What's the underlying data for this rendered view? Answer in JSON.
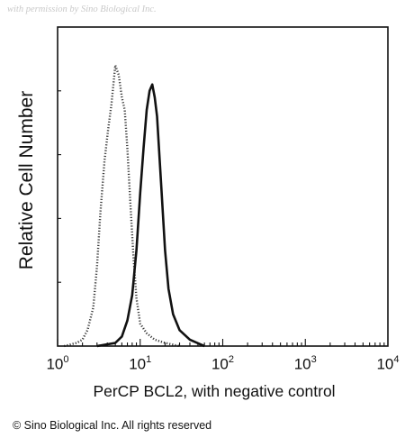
{
  "watermark": "with permission by Sino Biological Inc.",
  "footer": "© Sino Biological Inc. All rights reserved",
  "chart_data": {
    "type": "line",
    "xlabel": "PerCP BCL2, with negative control",
    "ylabel": "Relative Cell Number",
    "x_scale": "log",
    "xlim": [
      1,
      10000
    ],
    "x_ticks": [
      {
        "base": "10",
        "exp": "0"
      },
      {
        "base": "10",
        "exp": "1"
      },
      {
        "base": "10",
        "exp": "2"
      },
      {
        "base": "10",
        "exp": "3"
      },
      {
        "base": "10",
        "exp": "4"
      }
    ],
    "ylim": [
      0,
      100
    ],
    "series": [
      {
        "style": "dotted",
        "x": [
          1.2,
          1.7,
          2.0,
          2.3,
          2.7,
          3.0,
          3.3,
          3.7,
          4.1,
          4.5,
          5.0,
          5.5,
          6.0,
          6.5,
          7.0,
          7.6,
          8.3,
          9.0,
          10.0,
          12.0,
          15.0,
          20.0,
          30.0
        ],
        "y": [
          0,
          1,
          2,
          5,
          12,
          25,
          42,
          58,
          68,
          76,
          88,
          85,
          78,
          74,
          62,
          45,
          28,
          15,
          7,
          4,
          2,
          1,
          0
        ]
      },
      {
        "style": "solid",
        "x": [
          3.0,
          5.0,
          6.0,
          7.0,
          8.0,
          9.0,
          10.0,
          11.0,
          12.0,
          13.0,
          14.0,
          15.0,
          16.0,
          18.0,
          20.0,
          22.0,
          25.0,
          30.0,
          40.0,
          60.0
        ],
        "y": [
          0,
          1,
          3,
          8,
          16,
          30,
          48,
          62,
          74,
          80,
          82,
          78,
          72,
          50,
          30,
          18,
          10,
          5,
          2,
          0
        ]
      }
    ]
  }
}
